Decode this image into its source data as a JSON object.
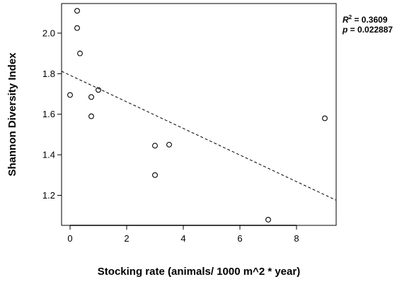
{
  "chart_data": {
    "type": "scatter",
    "title": "",
    "xlabel": "Stocking rate (animals/ 1000 m^2 * year)",
    "ylabel": "Shannon Diversity Index",
    "xlim": [
      -0.3,
      9.4
    ],
    "ylim": [
      1.052,
      2.146
    ],
    "x_ticks": [
      0,
      2,
      4,
      6,
      8
    ],
    "y_ticks": [
      1.2,
      1.4,
      1.6,
      1.8,
      2.0
    ],
    "x_tick_labels": [
      "0",
      "2",
      "4",
      "6",
      "8"
    ],
    "y_tick_labels": [
      "1.2",
      "1.4",
      "1.6",
      "1.8",
      "2.0"
    ],
    "grid": false,
    "legend": "none",
    "points": [
      {
        "x": 0.25,
        "y": 2.11
      },
      {
        "x": 0.25,
        "y": 2.025
      },
      {
        "x": 0.35,
        "y": 1.9
      },
      {
        "x": 0.0,
        "y": 1.695
      },
      {
        "x": 0.75,
        "y": 1.685
      },
      {
        "x": 1.0,
        "y": 1.72
      },
      {
        "x": 0.75,
        "y": 1.59
      },
      {
        "x": 3.0,
        "y": 1.445
      },
      {
        "x": 3.5,
        "y": 1.45
      },
      {
        "x": 3.0,
        "y": 1.3
      },
      {
        "x": 7.0,
        "y": 1.08
      },
      {
        "x": 9.0,
        "y": 1.58
      }
    ],
    "trendline": {
      "style": "dashed",
      "x": [
        -0.3,
        9.4
      ],
      "y": [
        1.812,
        1.176
      ]
    },
    "annotations": {
      "r2_label": "R",
      "r2_superscript": "2",
      "r2_value": " = 0.3609",
      "p_label": "p",
      "p_value": " = 0.022887"
    },
    "marker": "open-circle",
    "color": "#000000"
  }
}
